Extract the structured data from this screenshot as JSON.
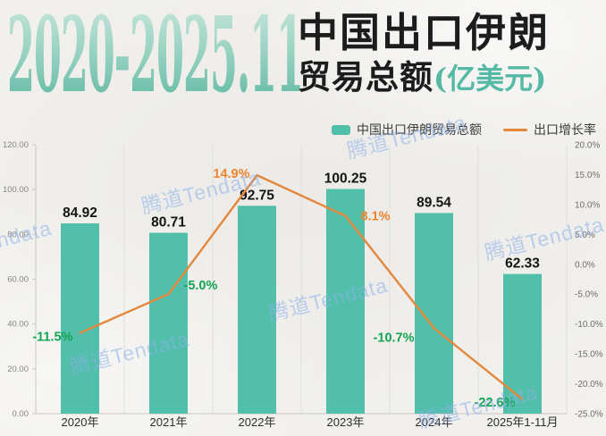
{
  "header": {
    "period": "2020-2025.11",
    "title_main": "中国出口伊朗",
    "title_sub": "贸易总额",
    "unit": "(亿美元)"
  },
  "legend": [
    {
      "label": "中国出口伊朗贸易总额",
      "type": "bar"
    },
    {
      "label": "出口增长率",
      "type": "line"
    }
  ],
  "watermark": {
    "text": "腾道Tendata"
  },
  "colors": {
    "bar": "#52bfaa",
    "line": "#e3873b",
    "label_positive": "#ed8430",
    "label_negative": "#13a354",
    "bar_value_label": "#141414",
    "grid": "#e0dfdb",
    "axis": "#c9c8c4",
    "axis_text_left": "#878683",
    "axis_text_right": "#6e6d6a",
    "x_text": "#2e2e2c",
    "unit_teal": "#55b9a5",
    "watermark_blue": "#8ab0e9"
  },
  "chart_data": {
    "type": "bar",
    "title": "2020-2025.11 中国出口伊朗贸易总额(亿美元)",
    "categories": [
      "2020年",
      "2021年",
      "2022年",
      "2023年",
      "2024年",
      "2025年1-11月"
    ],
    "series": [
      {
        "name": "中国出口伊朗贸易总额",
        "type": "bar",
        "axis": "left",
        "values": [
          84.92,
          80.71,
          92.75,
          100.25,
          89.54,
          62.33
        ]
      },
      {
        "name": "出口增长率",
        "type": "line",
        "axis": "right",
        "unit": "%",
        "values": [
          -11.5,
          -5.0,
          14.9,
          8.1,
          -10.7,
          -22.6
        ]
      }
    ],
    "bar_labels": [
      "84.92",
      "80.71",
      "92.75",
      "100.25",
      "89.54",
      "62.33"
    ],
    "line_labels": [
      "-11.5%",
      "-5.0%",
      "14.9%",
      "8.1%",
      "-10.7%",
      "-22.6%"
    ],
    "left_axis": {
      "min": 0,
      "max": 120,
      "ticks": [
        "120.00",
        "100.00",
        "80.00",
        "60.00",
        "40.00",
        "20.00",
        "0.00"
      ]
    },
    "right_axis": {
      "min": -25,
      "max": 20,
      "ticks": [
        "20.0%",
        "15.0%",
        "10.0%",
        "5.0%",
        "0.0%",
        "-5.0%",
        "-10.0%",
        "-15.0%",
        "-20.0%",
        "-25.0%"
      ]
    },
    "grid": "vertical-only",
    "legend_position": "top-right"
  }
}
